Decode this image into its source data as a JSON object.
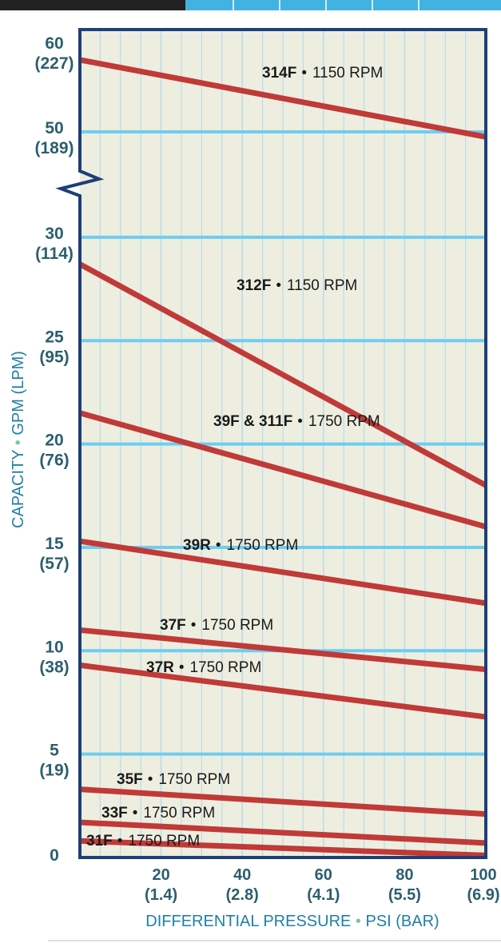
{
  "chart_data": {
    "type": "line",
    "xlabel": "DIFFERENTIAL PRESSURE • PSI (BAR)",
    "ylabel": "CAPACITY • GPM (LPM)",
    "xlim": [
      0,
      100
    ],
    "ylim": [
      0,
      60
    ],
    "y_axis_break": [
      30,
      50
    ],
    "grid": true,
    "x_ticks": [
      {
        "value": 20,
        "psi": "20",
        "bar": "(1.4)"
      },
      {
        "value": 40,
        "psi": "40",
        "bar": "(2.8)"
      },
      {
        "value": 60,
        "psi": "60",
        "bar": "(4.1)"
      },
      {
        "value": 80,
        "psi": "80",
        "bar": "(5.5)"
      },
      {
        "value": 100,
        "psi": "100",
        "bar": "(6.9)"
      }
    ],
    "y_ticks": [
      {
        "value": 0,
        "gpm": "0",
        "lpm": ""
      },
      {
        "value": 5,
        "gpm": "5",
        "lpm": "(19)"
      },
      {
        "value": 10,
        "gpm": "10",
        "lpm": "(38)"
      },
      {
        "value": 15,
        "gpm": "15",
        "lpm": "(57)"
      },
      {
        "value": 20,
        "gpm": "20",
        "lpm": "(76)"
      },
      {
        "value": 25,
        "gpm": "25",
        "lpm": "(95)"
      },
      {
        "value": 30,
        "gpm": "30",
        "lpm": "(114)"
      },
      {
        "value": 50,
        "gpm": "50",
        "lpm": "(189)"
      },
      {
        "value": 60,
        "gpm": "60",
        "lpm": "(227)"
      }
    ],
    "series": [
      {
        "model": "314F",
        "speed": "1150 RPM",
        "x": [
          0,
          100
        ],
        "y": [
          58.5,
          49.4
        ]
      },
      {
        "model": "312F",
        "speed": "1150 RPM",
        "x": [
          0,
          100
        ],
        "y": [
          28.7,
          18.0
        ]
      },
      {
        "model": "39F & 311F",
        "speed": "1750 RPM",
        "x": [
          0,
          100
        ],
        "y": [
          21.5,
          16.0
        ]
      },
      {
        "model": "39R",
        "speed": "1750 RPM",
        "x": [
          0,
          100
        ],
        "y": [
          15.3,
          12.3
        ]
      },
      {
        "model": "37F",
        "speed": "1750 RPM",
        "x": [
          0,
          100
        ],
        "y": [
          11.0,
          9.1
        ]
      },
      {
        "model": "37R",
        "speed": "1750 RPM",
        "x": [
          0,
          100
        ],
        "y": [
          9.3,
          6.8
        ]
      },
      {
        "model": "35F",
        "speed": "1750 RPM",
        "x": [
          0,
          100
        ],
        "y": [
          3.3,
          2.1
        ]
      },
      {
        "model": "33F",
        "speed": "1750 RPM",
        "x": [
          0,
          100
        ],
        "y": [
          1.7,
          0.7
        ]
      },
      {
        "model": "31F",
        "speed": "1750 RPM",
        "x": [
          0,
          100
        ],
        "y": [
          0.8,
          0.1
        ]
      }
    ],
    "colors": {
      "plot_background": "#edeee0",
      "major_grid": "#6fcdf0",
      "minor_grid": "#b9dcea",
      "series_line": "#c03a38",
      "frame": "#1d3f76",
      "tick_text": "#2c5f6e",
      "axis_label_text": "#1f7fa8",
      "top_band": "#42b3e0"
    }
  }
}
